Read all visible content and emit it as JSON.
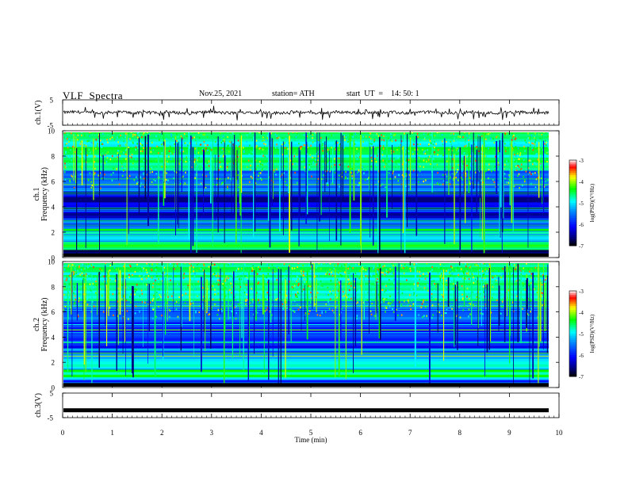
{
  "header": {
    "title": "VLF  Spectra",
    "date": "Nov.25, 2021",
    "station": "station= ATH",
    "start_ut": "start  UT  =    14: 50: 1"
  },
  "colors": {
    "background": "#ffffff",
    "axes": "#000000",
    "colormap": [
      "#ffffff",
      "#ff0000",
      "#ffff00",
      "#00ff00",
      "#00ffff",
      "#0000ff",
      "#000080",
      "#000000"
    ]
  },
  "chart_data": [
    {
      "type": "line",
      "panel": "ch1-waveform",
      "ylabel": "ch.1(V)",
      "ylim": [
        -5,
        5
      ],
      "yticks": [
        "5",
        "-5"
      ],
      "xlim": [
        0,
        10
      ],
      "series": [
        {
          "values_note": "",
          "mean": 0.0,
          "amplitude_approx": 1.0
        }
      ]
    },
    {
      "type": "heatmap",
      "panel": "ch1-spectrogram",
      "ylabel": "ch.1  Frequency  (kHz)",
      "ylim": [
        0,
        10
      ],
      "yticks": [
        "0",
        "2",
        "4",
        "6",
        "8",
        "10"
      ],
      "xlim": [
        0,
        10
      ],
      "colorbar": {
        "label": "log(PSD)(V²/Hz)",
        "range": [
          -7,
          -3
        ],
        "ticks": [
          "-3",
          "-4",
          "-5",
          "-6",
          "-7"
        ]
      }
    },
    {
      "type": "heatmap",
      "panel": "ch2-spectrogram",
      "ylabel": "ch.2  Frequency  (kHz)",
      "ylim": [
        0,
        10
      ],
      "yticks": [
        "0",
        "2",
        "4",
        "6",
        "8",
        "10"
      ],
      "xlim": [
        0,
        10
      ],
      "colorbar": {
        "label": "log(PSD)(V²/Hz)",
        "range": [
          -7,
          -3
        ],
        "ticks": [
          "-3",
          "-4",
          "-5",
          "-6",
          "-7"
        ]
      }
    },
    {
      "type": "line",
      "panel": "ch3-waveform",
      "ylabel": "ch.3(V)",
      "ylim": [
        -5,
        5
      ],
      "yticks": [
        "5",
        "-5"
      ],
      "xlim": [
        0,
        10
      ],
      "series": [
        {
          "mean": -2.0
        }
      ]
    }
  ],
  "x_axis": {
    "label": "Time  (min)",
    "ticks": [
      "0",
      "1",
      "2",
      "3",
      "4",
      "5",
      "6",
      "7",
      "8",
      "9",
      "10"
    ],
    "range": [
      0,
      10
    ],
    "data_end": 9.8
  }
}
